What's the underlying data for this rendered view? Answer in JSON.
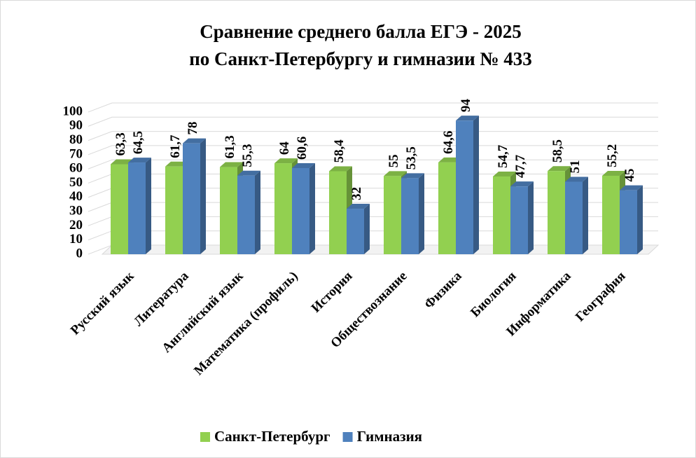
{
  "chart_data": {
    "type": "bar3d",
    "title": [
      "Сравнение среднего балла ЕГЭ - 2025",
      "по Санкт-Петербургу и гимназии № 433"
    ],
    "categories": [
      "Русский язык",
      "Литература",
      "Английский язык",
      "Математика (профиль)",
      "История",
      "Обществознание",
      "Физика",
      "Биология",
      "Информатика",
      "География"
    ],
    "series": [
      {
        "name": "Санкт-Петербург",
        "color": "#92d050",
        "values": [
          63.3,
          61.7,
          61.3,
          64,
          58.4,
          55,
          64.6,
          54.7,
          58.5,
          55.2
        ],
        "value_labels": [
          "63,3",
          "61,7",
          "61,3",
          "64",
          "58,4",
          "55",
          "64,6",
          "54,7",
          "58,5",
          "55,2"
        ]
      },
      {
        "name": "Гимназия",
        "color": "#4f81bd",
        "values": [
          64.5,
          78,
          55.3,
          60.6,
          32,
          53.5,
          94,
          47.7,
          51,
          45
        ],
        "value_labels": [
          "64,5",
          "78",
          "55,3",
          "60,6",
          "32",
          "53,5",
          "94",
          "47,7",
          "51",
          "45"
        ]
      }
    ],
    "ylim": [
      0,
      100
    ],
    "yticks": [
      0,
      10,
      20,
      30,
      40,
      50,
      60,
      70,
      80,
      90,
      100
    ],
    "grid": true,
    "legend": "bottom"
  }
}
